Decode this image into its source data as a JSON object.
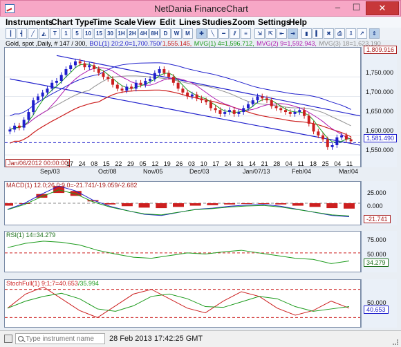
{
  "window": {
    "title": "NetDania FinanceChart",
    "minimize": "–",
    "maximize": "☐",
    "close": "✕"
  },
  "menu": [
    "Instruments",
    "Chart Type",
    "Time Scale",
    "View",
    "Edit",
    "Lines",
    "Studies",
    "Zoom",
    "Settings",
    "Help"
  ],
  "toolbar": {
    "buttons": [
      "T",
      "1",
      "5",
      "10",
      "15",
      "30",
      "1H",
      "2H",
      "4H",
      "8H",
      "D",
      "W",
      "M"
    ]
  },
  "legend": [
    {
      "text": "Gold, spot ,Daily, # 147 / 300, ",
      "color": "#000000"
    },
    {
      "text": "BOL(1) 20;2.0=1,700.750/",
      "color": "#1f1fcc"
    },
    {
      "text": "1,555.145, ",
      "color": "#cc1f1f"
    },
    {
      "text": "MVG(1) 4=1,596.712, ",
      "color": "#1a9a1a"
    },
    {
      "text": "MVG(2) 9=1,592.943, ",
      "color": "#b01ab0"
    },
    {
      "text": "MVG(3) 18=1,623.190",
      "color": "#909090"
    }
  ],
  "main_chart": {
    "y_ticks": [
      "1,750.000",
      "1,700.000",
      "1,650.000",
      "1,600.000",
      "1,550.000"
    ],
    "current_price": "1,809.916",
    "last_price": "1,581.490",
    "date_label": "Jan/06/2012 00:00:00",
    "x_days": [
      "17",
      "24",
      "08",
      "15",
      "22",
      "29",
      "05",
      "12",
      "19",
      "26",
      "03",
      "10",
      "17",
      "24",
      "31",
      "14",
      "21",
      "28",
      "04",
      "11",
      "18",
      "25",
      "04",
      "11"
    ],
    "x_months": [
      "Sep/03",
      "Oct/08",
      "Nov/05",
      "Dec/03",
      "Jan/07/13",
      "Feb/04",
      "Mar/04"
    ]
  },
  "macd": {
    "label": "MACD(1) 12.0;26.0;9.0=-21.741/-19.059/-2.682",
    "y_ticks": [
      "25.000",
      "0.000",
      "-25.000"
    ],
    "value": "-21.741"
  },
  "rsi": {
    "label": "RSI(1) 14=34.279",
    "y_ticks": [
      "75.000",
      "50.000",
      "25.000"
    ],
    "value": "34.279"
  },
  "stoch": {
    "label_a": "StochFull(1) 9;1;7=40.653",
    "label_b": "/35.994",
    "y_ticks": [
      "50.000"
    ],
    "value": "40.653"
  },
  "status": {
    "placeholder": "Type instrument name",
    "time": "28 Feb 2013 17:42:25 GMT"
  },
  "colors": {
    "accent": "#1f1fcc",
    "bull": "#1f1fcc",
    "bear": "#cc1f1f",
    "ma_green": "#1a9a1a",
    "ma_purple": "#b01ab0",
    "ma_gray": "#909090"
  },
  "chart_data": {
    "type": "candlestick",
    "series": [
      {
        "name": "Gold, spot",
        "close": [
          1615,
          1625,
          1620,
          1640,
          1660,
          1690,
          1700,
          1710,
          1720,
          1735,
          1740,
          1755,
          1770,
          1780,
          1790,
          1785,
          1775,
          1780,
          1770,
          1760,
          1750,
          1745,
          1730,
          1720,
          1715,
          1725,
          1720,
          1735,
          1730,
          1740,
          1745,
          1760,
          1770,
          1760,
          1750,
          1735,
          1720,
          1710,
          1700,
          1705,
          1695,
          1690,
          1685,
          1670,
          1665,
          1655,
          1660,
          1665,
          1655,
          1660,
          1670,
          1680,
          1690,
          1700,
          1695,
          1690,
          1675,
          1670,
          1665,
          1660,
          1655,
          1660,
          1665,
          1650,
          1630,
          1610,
          1600,
          1590,
          1570,
          1575,
          1595,
          1600,
          1590,
          1585
        ]
      },
      {
        "name": "MACD",
        "values": [
          -10,
          0,
          15,
          28,
          20,
          5,
          -5,
          -12,
          -18,
          -20,
          -15,
          -10,
          -8,
          -5,
          -3,
          -2,
          -5,
          -10,
          -15,
          -20,
          -22
        ]
      },
      {
        "name": "RSI",
        "values": [
          60,
          68,
          72,
          70,
          65,
          55,
          48,
          42,
          40,
          45,
          50,
          48,
          52,
          55,
          50,
          45,
          40,
          38,
          30,
          35
        ]
      },
      {
        "name": "StochFull",
        "values": [
          40,
          70,
          85,
          60,
          35,
          20,
          45,
          70,
          80,
          60,
          40,
          30,
          55,
          75,
          65,
          40,
          25,
          35,
          55,
          40
        ]
      }
    ]
  }
}
